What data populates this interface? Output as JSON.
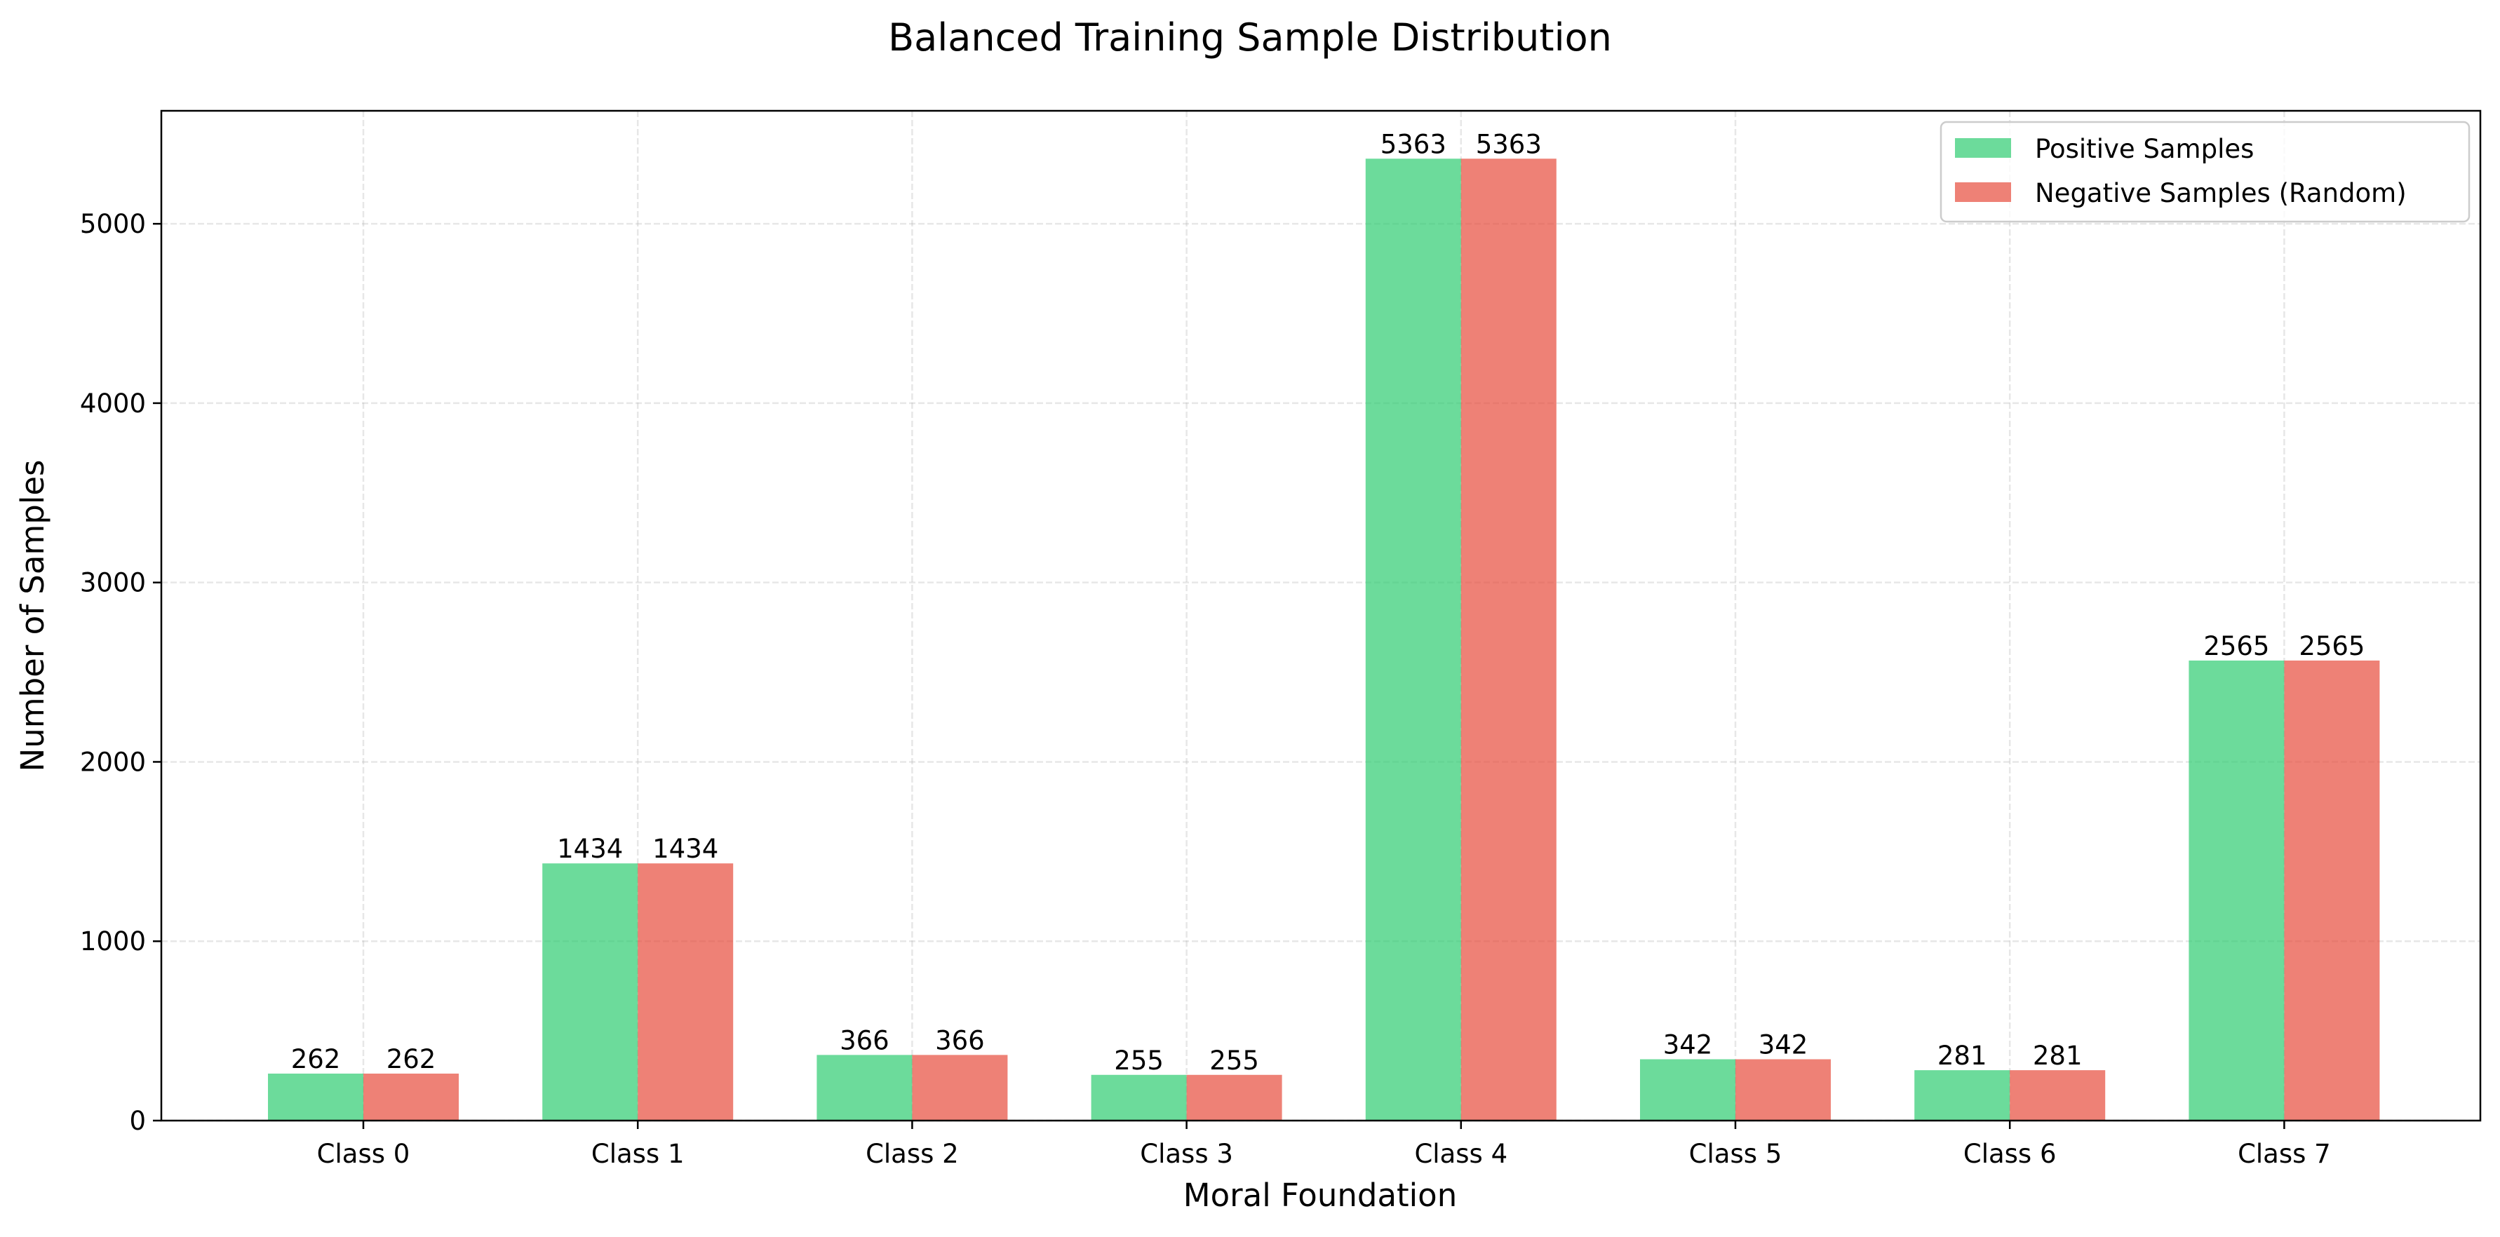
{
  "chart_data": {
    "type": "bar",
    "title": "Balanced Training Sample Distribution",
    "xlabel": "Moral Foundation",
    "ylabel": "Number of Samples",
    "categories": [
      "Class 0",
      "Class 1",
      "Class 2",
      "Class 3",
      "Class 4",
      "Class 5",
      "Class 6",
      "Class 7"
    ],
    "series": [
      {
        "name": "Positive Samples",
        "color": "#2ecc71",
        "values": [
          262,
          1434,
          366,
          255,
          5363,
          342,
          281,
          2565
        ]
      },
      {
        "name": "Negative Samples (Random)",
        "color": "#e74c3c",
        "values": [
          262,
          1434,
          366,
          255,
          5363,
          342,
          281,
          2565
        ]
      }
    ],
    "ylim": [
      0,
      5630
    ],
    "yticks": [
      0,
      1000,
      2000,
      3000,
      4000,
      5000
    ],
    "grid": true,
    "legend_position": "top-right",
    "data_labels": true
  }
}
